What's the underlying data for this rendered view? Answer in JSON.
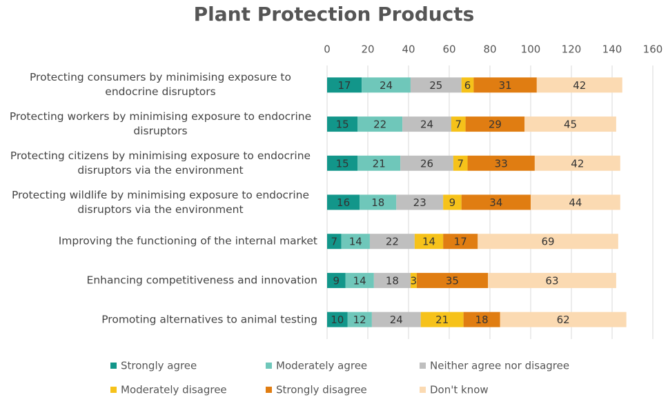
{
  "chart_data": {
    "type": "stacked-bar",
    "title": "Plant Protection Products",
    "categories": [
      "Protecting consumers by minimising exposure to endocrine disruptors",
      "Protecting workers by minimising exposure to endocrine disruptors",
      "Protecting citizens by minimising exposure to endocrine disruptors via the environment",
      "Protecting wildlife by minimising exposure to endocrine disruptors via the environment",
      "Improving the functioning of the internal market",
      "Enhancing competitiveness and innovation",
      "Promoting alternatives to animal testing"
    ],
    "series": [
      {
        "name": "Strongly agree",
        "color": "#12968a",
        "values": [
          17,
          15,
          15,
          16,
          7,
          9,
          10
        ]
      },
      {
        "name": "Moderately agree",
        "color": "#6fc7ba",
        "values": [
          24,
          22,
          21,
          18,
          14,
          14,
          12
        ]
      },
      {
        "name": "Neither agree nor disagree",
        "color": "#bfbfbf",
        "values": [
          25,
          24,
          26,
          23,
          22,
          18,
          24
        ]
      },
      {
        "name": "Moderately disagree",
        "color": "#f6c21a",
        "values": [
          6,
          7,
          7,
          9,
          14,
          3,
          21
        ]
      },
      {
        "name": "Strongly disagree",
        "color": "#e07d12",
        "values": [
          31,
          29,
          33,
          34,
          17,
          35,
          18
        ]
      },
      {
        "name": "Don't know",
        "color": "#fbdab2",
        "values": [
          42,
          45,
          42,
          44,
          69,
          63,
          62
        ]
      }
    ],
    "xlim": [
      0,
      160
    ],
    "xticks": [
      0,
      20,
      40,
      60,
      80,
      100,
      120,
      140,
      160
    ],
    "grid": true
  }
}
